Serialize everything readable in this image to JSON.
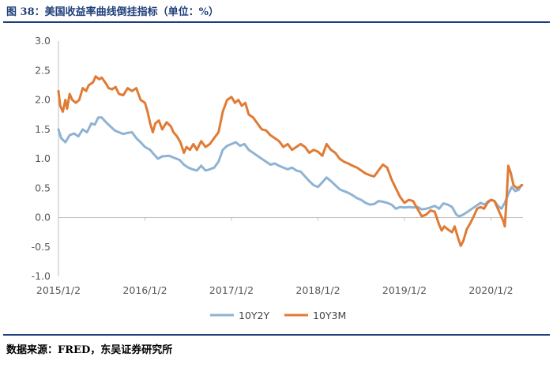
{
  "header": {
    "title": "图 38：美国收益率曲线倒挂指标（单位：%）"
  },
  "footer": {
    "source": "数据来源：FRED，东吴证券研究所"
  },
  "chart_data": {
    "type": "line",
    "title": "美国收益率曲线倒挂指标（单位：%）",
    "xlabel": "",
    "ylabel": "%",
    "ylim": [
      -1.0,
      3.0
    ],
    "yticks": [
      "3.0",
      "2.5",
      "2.0",
      "1.5",
      "1.0",
      "0.5",
      "0.0",
      "-0.5",
      "-1.0"
    ],
    "ytick_values": [
      3.0,
      2.5,
      2.0,
      1.5,
      1.0,
      0.5,
      0.0,
      -0.5,
      -1.0
    ],
    "xlim": [
      2015.0,
      2020.37
    ],
    "xticks": [
      "2015/1/2",
      "2016/1/2",
      "2017/1/2",
      "2018/1/2",
      "2019/1/2",
      "2020/1/2"
    ],
    "xtick_values": [
      2015.0,
      2016.0,
      2017.0,
      2018.0,
      2019.0,
      2020.0
    ],
    "legend_position": "bottom",
    "series": [
      {
        "name": "10Y2Y",
        "color": "#8fb3d4",
        "points": [
          [
            2015.0,
            1.5
          ],
          [
            2015.03,
            1.35
          ],
          [
            2015.08,
            1.28
          ],
          [
            2015.13,
            1.4
          ],
          [
            2015.18,
            1.43
          ],
          [
            2015.23,
            1.38
          ],
          [
            2015.28,
            1.5
          ],
          [
            2015.33,
            1.45
          ],
          [
            2015.38,
            1.6
          ],
          [
            2015.42,
            1.58
          ],
          [
            2015.46,
            1.7
          ],
          [
            2015.5,
            1.7
          ],
          [
            2015.55,
            1.62
          ],
          [
            2015.6,
            1.55
          ],
          [
            2015.65,
            1.48
          ],
          [
            2015.7,
            1.45
          ],
          [
            2015.75,
            1.42
          ],
          [
            2015.8,
            1.44
          ],
          [
            2015.85,
            1.45
          ],
          [
            2015.9,
            1.35
          ],
          [
            2015.95,
            1.28
          ],
          [
            2016.0,
            1.2
          ],
          [
            2016.06,
            1.15
          ],
          [
            2016.1,
            1.08
          ],
          [
            2016.15,
            1.0
          ],
          [
            2016.2,
            1.04
          ],
          [
            2016.28,
            1.05
          ],
          [
            2016.33,
            1.02
          ],
          [
            2016.4,
            0.98
          ],
          [
            2016.45,
            0.9
          ],
          [
            2016.5,
            0.85
          ],
          [
            2016.55,
            0.82
          ],
          [
            2016.6,
            0.8
          ],
          [
            2016.65,
            0.88
          ],
          [
            2016.7,
            0.8
          ],
          [
            2016.75,
            0.82
          ],
          [
            2016.8,
            0.85
          ],
          [
            2016.85,
            0.95
          ],
          [
            2016.9,
            1.15
          ],
          [
            2016.95,
            1.22
          ],
          [
            2017.0,
            1.25
          ],
          [
            2017.05,
            1.28
          ],
          [
            2017.1,
            1.22
          ],
          [
            2017.15,
            1.25
          ],
          [
            2017.2,
            1.15
          ],
          [
            2017.25,
            1.1
          ],
          [
            2017.3,
            1.05
          ],
          [
            2017.35,
            1.0
          ],
          [
            2017.4,
            0.95
          ],
          [
            2017.45,
            0.9
          ],
          [
            2017.5,
            0.92
          ],
          [
            2017.55,
            0.88
          ],
          [
            2017.6,
            0.85
          ],
          [
            2017.65,
            0.82
          ],
          [
            2017.7,
            0.85
          ],
          [
            2017.75,
            0.8
          ],
          [
            2017.8,
            0.78
          ],
          [
            2017.85,
            0.7
          ],
          [
            2017.9,
            0.62
          ],
          [
            2017.95,
            0.55
          ],
          [
            2018.0,
            0.52
          ],
          [
            2018.05,
            0.6
          ],
          [
            2018.1,
            0.68
          ],
          [
            2018.15,
            0.62
          ],
          [
            2018.2,
            0.55
          ],
          [
            2018.25,
            0.48
          ],
          [
            2018.3,
            0.45
          ],
          [
            2018.35,
            0.42
          ],
          [
            2018.4,
            0.38
          ],
          [
            2018.45,
            0.33
          ],
          [
            2018.5,
            0.3
          ],
          [
            2018.55,
            0.25
          ],
          [
            2018.6,
            0.22
          ],
          [
            2018.65,
            0.23
          ],
          [
            2018.7,
            0.28
          ],
          [
            2018.75,
            0.27
          ],
          [
            2018.8,
            0.25
          ],
          [
            2018.85,
            0.22
          ],
          [
            2018.9,
            0.15
          ],
          [
            2018.95,
            0.18
          ],
          [
            2019.0,
            0.17
          ],
          [
            2019.05,
            0.18
          ],
          [
            2019.1,
            0.17
          ],
          [
            2019.15,
            0.18
          ],
          [
            2019.2,
            0.14
          ],
          [
            2019.25,
            0.15
          ],
          [
            2019.3,
            0.17
          ],
          [
            2019.35,
            0.2
          ],
          [
            2019.4,
            0.15
          ],
          [
            2019.45,
            0.24
          ],
          [
            2019.5,
            0.22
          ],
          [
            2019.55,
            0.18
          ],
          [
            2019.6,
            0.05
          ],
          [
            2019.63,
            0.02
          ],
          [
            2019.68,
            0.05
          ],
          [
            2019.73,
            0.1
          ],
          [
            2019.78,
            0.15
          ],
          [
            2019.83,
            0.2
          ],
          [
            2019.88,
            0.25
          ],
          [
            2019.93,
            0.22
          ],
          [
            2019.97,
            0.28
          ],
          [
            2020.0,
            0.3
          ],
          [
            2020.04,
            0.28
          ],
          [
            2020.08,
            0.2
          ],
          [
            2020.12,
            0.15
          ],
          [
            2020.16,
            0.25
          ],
          [
            2020.2,
            0.4
          ],
          [
            2020.24,
            0.52
          ],
          [
            2020.28,
            0.45
          ],
          [
            2020.32,
            0.47
          ],
          [
            2020.35,
            0.55
          ]
        ]
      },
      {
        "name": "10Y3M",
        "color": "#e07b35",
        "points": [
          [
            2015.0,
            2.15
          ],
          [
            2015.02,
            1.9
          ],
          [
            2015.05,
            1.8
          ],
          [
            2015.08,
            2.0
          ],
          [
            2015.1,
            1.85
          ],
          [
            2015.13,
            2.1
          ],
          [
            2015.16,
            2.0
          ],
          [
            2015.2,
            1.95
          ],
          [
            2015.24,
            2.0
          ],
          [
            2015.28,
            2.2
          ],
          [
            2015.32,
            2.15
          ],
          [
            2015.35,
            2.25
          ],
          [
            2015.4,
            2.3
          ],
          [
            2015.43,
            2.4
          ],
          [
            2015.47,
            2.35
          ],
          [
            2015.5,
            2.38
          ],
          [
            2015.54,
            2.3
          ],
          [
            2015.58,
            2.2
          ],
          [
            2015.62,
            2.18
          ],
          [
            2015.66,
            2.22
          ],
          [
            2015.7,
            2.1
          ],
          [
            2015.75,
            2.08
          ],
          [
            2015.8,
            2.2
          ],
          [
            2015.85,
            2.15
          ],
          [
            2015.9,
            2.2
          ],
          [
            2015.95,
            2.0
          ],
          [
            2016.0,
            1.95
          ],
          [
            2016.03,
            1.8
          ],
          [
            2016.06,
            1.6
          ],
          [
            2016.09,
            1.45
          ],
          [
            2016.12,
            1.6
          ],
          [
            2016.16,
            1.65
          ],
          [
            2016.2,
            1.5
          ],
          [
            2016.25,
            1.62
          ],
          [
            2016.3,
            1.55
          ],
          [
            2016.33,
            1.45
          ],
          [
            2016.37,
            1.38
          ],
          [
            2016.41,
            1.28
          ],
          [
            2016.45,
            1.1
          ],
          [
            2016.48,
            1.2
          ],
          [
            2016.52,
            1.15
          ],
          [
            2016.56,
            1.25
          ],
          [
            2016.6,
            1.15
          ],
          [
            2016.65,
            1.3
          ],
          [
            2016.7,
            1.2
          ],
          [
            2016.75,
            1.25
          ],
          [
            2016.8,
            1.35
          ],
          [
            2016.85,
            1.45
          ],
          [
            2016.9,
            1.8
          ],
          [
            2016.95,
            2.0
          ],
          [
            2017.0,
            2.05
          ],
          [
            2017.04,
            1.95
          ],
          [
            2017.08,
            2.0
          ],
          [
            2017.12,
            1.9
          ],
          [
            2017.16,
            1.95
          ],
          [
            2017.2,
            1.75
          ],
          [
            2017.25,
            1.7
          ],
          [
            2017.3,
            1.6
          ],
          [
            2017.35,
            1.5
          ],
          [
            2017.4,
            1.48
          ],
          [
            2017.45,
            1.4
          ],
          [
            2017.5,
            1.35
          ],
          [
            2017.55,
            1.3
          ],
          [
            2017.6,
            1.2
          ],
          [
            2017.65,
            1.25
          ],
          [
            2017.7,
            1.15
          ],
          [
            2017.75,
            1.2
          ],
          [
            2017.8,
            1.25
          ],
          [
            2017.85,
            1.2
          ],
          [
            2017.9,
            1.1
          ],
          [
            2017.95,
            1.15
          ],
          [
            2018.0,
            1.12
          ],
          [
            2018.05,
            1.05
          ],
          [
            2018.1,
            1.25
          ],
          [
            2018.15,
            1.15
          ],
          [
            2018.2,
            1.1
          ],
          [
            2018.25,
            1.0
          ],
          [
            2018.3,
            0.95
          ],
          [
            2018.35,
            0.92
          ],
          [
            2018.4,
            0.88
          ],
          [
            2018.45,
            0.85
          ],
          [
            2018.5,
            0.8
          ],
          [
            2018.55,
            0.75
          ],
          [
            2018.6,
            0.72
          ],
          [
            2018.65,
            0.7
          ],
          [
            2018.7,
            0.8
          ],
          [
            2018.75,
            0.9
          ],
          [
            2018.8,
            0.85
          ],
          [
            2018.85,
            0.65
          ],
          [
            2018.9,
            0.5
          ],
          [
            2018.95,
            0.35
          ],
          [
            2019.0,
            0.25
          ],
          [
            2019.05,
            0.3
          ],
          [
            2019.1,
            0.28
          ],
          [
            2019.15,
            0.15
          ],
          [
            2019.2,
            0.02
          ],
          [
            2019.25,
            0.05
          ],
          [
            2019.3,
            0.12
          ],
          [
            2019.35,
            0.1
          ],
          [
            2019.4,
            -0.12
          ],
          [
            2019.43,
            -0.22
          ],
          [
            2019.46,
            -0.15
          ],
          [
            2019.5,
            -0.2
          ],
          [
            2019.55,
            -0.25
          ],
          [
            2019.58,
            -0.15
          ],
          [
            2019.62,
            -0.35
          ],
          [
            2019.65,
            -0.48
          ],
          [
            2019.68,
            -0.4
          ],
          [
            2019.72,
            -0.2
          ],
          [
            2019.76,
            -0.1
          ],
          [
            2019.8,
            0.02
          ],
          [
            2019.84,
            0.15
          ],
          [
            2019.88,
            0.18
          ],
          [
            2019.92,
            0.15
          ],
          [
            2019.96,
            0.25
          ],
          [
            2020.0,
            0.3
          ],
          [
            2020.04,
            0.28
          ],
          [
            2020.08,
            0.15
          ],
          [
            2020.11,
            0.05
          ],
          [
            2020.14,
            -0.05
          ],
          [
            2020.16,
            -0.15
          ],
          [
            2020.18,
            0.3
          ],
          [
            2020.2,
            0.88
          ],
          [
            2020.23,
            0.75
          ],
          [
            2020.26,
            0.55
          ],
          [
            2020.3,
            0.5
          ],
          [
            2020.33,
            0.52
          ],
          [
            2020.36,
            0.55
          ]
        ]
      }
    ]
  }
}
